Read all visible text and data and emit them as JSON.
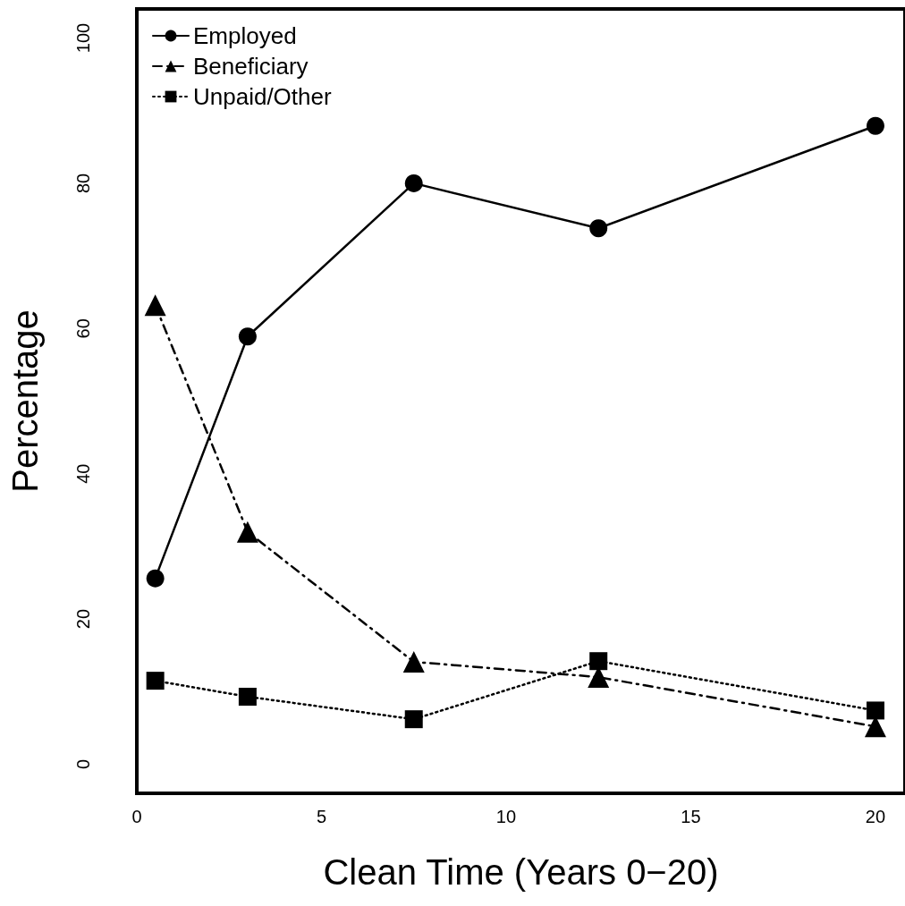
{
  "chart_data": {
    "type": "line",
    "xlabel": "Clean Time (Years 0−20)",
    "ylabel": "Percentage",
    "x": [
      0.5,
      3,
      7.5,
      12.5,
      20
    ],
    "series": [
      {
        "name": "Employed",
        "color": "#000000",
        "values": [
          25.6,
          58.9,
          80,
          73.8,
          87.9
        ],
        "marker": "circle",
        "line_style": "solid"
      },
      {
        "name": "Beneficiary",
        "color": "#000000",
        "values": [
          63.2,
          32,
          14.1,
          12,
          5.2
        ],
        "marker": "triangle",
        "line_style": "dashed"
      },
      {
        "name": "Unpaid/Other",
        "color": "#000000",
        "values": [
          11.5,
          9.3,
          6.2,
          14.2,
          7.4
        ],
        "marker": "square",
        "line_style": "dotted"
      }
    ],
    "xlim": [
      0,
      20.8
    ],
    "xticks": [
      0,
      5,
      10,
      15,
      20
    ],
    "ylim": [
      -4,
      104
    ],
    "yticks": [
      0,
      20,
      40,
      60,
      80,
      100
    ],
    "grid": false,
    "legend": "top left"
  }
}
